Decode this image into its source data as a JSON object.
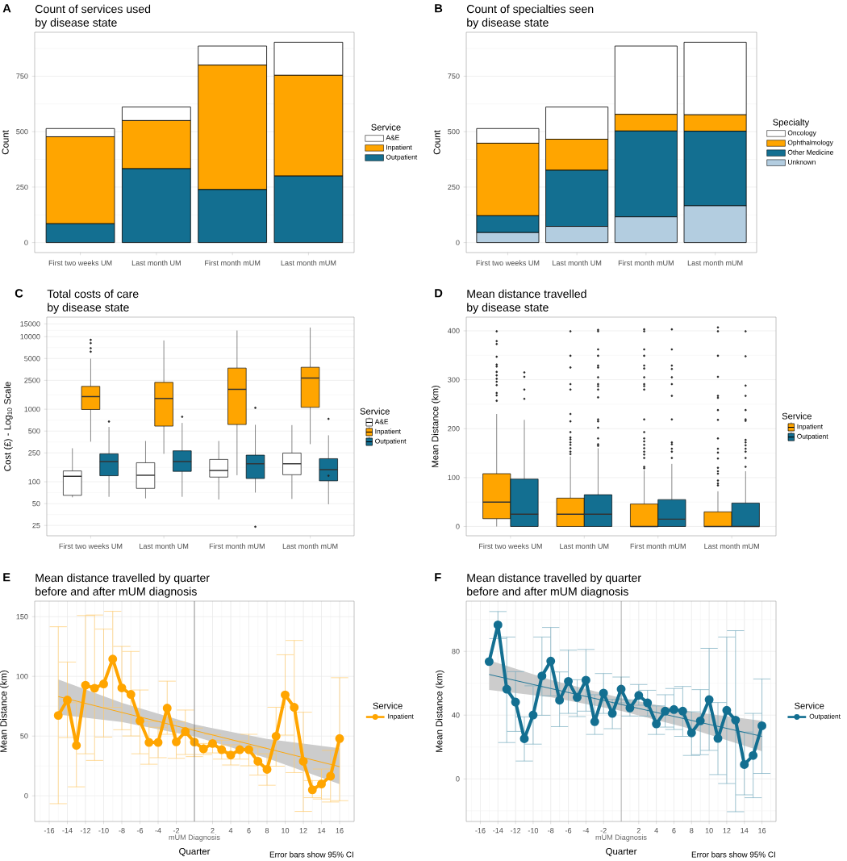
{
  "chart_data": [
    {
      "type": "bar",
      "stacked": true,
      "title": "Count of services used",
      "subtitle": "by disease state",
      "ylabel": "Count",
      "legend_title": "Service",
      "legend": "right",
      "grid": "y",
      "annotations": [
        "A"
      ],
      "categories": [
        "First two weeks UM",
        "Last month UM",
        "First month mUM",
        "Last month mUM"
      ],
      "ylim": [
        -45,
        948
      ],
      "yticks": [
        0,
        250,
        500,
        750
      ],
      "series": [
        {
          "name": "Outpatient",
          "color": "#136f91",
          "values": [
            85,
            333,
            239,
            300
          ]
        },
        {
          "name": "Inpatient",
          "color": "#ffa500",
          "values": [
            392,
            217,
            561,
            454
          ]
        },
        {
          "name": "A&E",
          "color": "#ffffff",
          "values": [
            37,
            61,
            86,
            149
          ]
        }
      ]
    },
    {
      "type": "bar",
      "stacked": true,
      "title": "Count of specialties seen",
      "subtitle": "by disease state",
      "ylabel": "Count",
      "legend_title": "Specialty",
      "legend": "right",
      "grid": "y",
      "annotations": [
        "B"
      ],
      "categories": [
        "First two weeks UM",
        "Last month UM",
        "First month mUM",
        "Last month mUM"
      ],
      "ylim": [
        -45,
        948
      ],
      "yticks": [
        0,
        250,
        500,
        750
      ],
      "series": [
        {
          "name": "Unknown",
          "color": "#b3cde0",
          "values": [
            45,
            73,
            116,
            166
          ]
        },
        {
          "name": "Other Medicine",
          "color": "#136f91",
          "values": [
            76,
            253,
            387,
            336
          ]
        },
        {
          "name": "Ophthalmology",
          "color": "#ffa500",
          "values": [
            327,
            140,
            75,
            74
          ]
        },
        {
          "name": "Oncology",
          "color": "#ffffff",
          "values": [
            66,
            145,
            308,
            327
          ]
        }
      ]
    },
    {
      "type": "box",
      "log": true,
      "title": "Total costs of care",
      "subtitle": "by disease state",
      "ylabel": "Cost (£) - Log$_{10}$ Scale",
      "legend_title": "Service",
      "legend": "right",
      "grid": "y",
      "annotations": [
        "C"
      ],
      "categories": [
        "First two weeks UM",
        "Last month UM",
        "First month mUM",
        "Last month mUM"
      ],
      "ylim": [
        18,
        18600
      ],
      "yticks": [
        25,
        50,
        100,
        250,
        500,
        1000,
        2500,
        5000,
        10000,
        15000
      ],
      "series": [
        {
          "name": "A&E",
          "color": "#ffffff",
          "boxes": [
            {
              "low": 61,
              "q1": 65,
              "median": 119,
              "q3": 141,
              "high": 290
            },
            {
              "low": 59,
              "q1": 81,
              "median": 123,
              "q3": 183,
              "high": 365
            },
            {
              "low": 57,
              "q1": 116,
              "median": 143,
              "q3": 203,
              "high": 365
            },
            {
              "low": 58,
              "q1": 125,
              "median": 177,
              "q3": 249,
              "high": 604
            }
          ]
        },
        {
          "name": "Inpatient",
          "color": "#ffa500",
          "boxes": [
            {
              "low": 357,
              "q1": 991,
              "median": 1493,
              "q3": 2065,
              "high": 4965,
              "outliers": [
                9040,
                8150,
                6930,
                6210
              ]
            },
            {
              "low": 243,
              "q1": 585,
              "median": 1406,
              "q3": 2345,
              "high": 8870
            },
            {
              "low": 123,
              "q1": 615,
              "median": 1880,
              "q3": 3690,
              "high": 12160
            },
            {
              "low": 330,
              "q1": 1062,
              "median": 2690,
              "q3": 3785,
              "high": 13370
            }
          ]
        },
        {
          "name": "Outpatient",
          "color": "#136f91",
          "boxes": [
            {
              "low": 62,
              "q1": 121,
              "median": 190,
              "q3": 243,
              "high": 570,
              "outliers": [
                676
              ]
            },
            {
              "low": 62,
              "q1": 139,
              "median": 190,
              "q3": 267,
              "high": 647,
              "outliers": [
                787
              ]
            },
            {
              "low": 71,
              "q1": 111,
              "median": 177,
              "q3": 233,
              "high": 610,
              "outliers": [
                1045,
                24
              ]
            },
            {
              "low": 49,
              "q1": 103,
              "median": 147,
              "q3": 208,
              "high": 437,
              "outliers": [
                736,
                121
              ]
            }
          ]
        }
      ]
    },
    {
      "type": "box",
      "title": "Mean distance travelled",
      "subtitle": "by disease state",
      "ylabel": "Mean Distance (km)",
      "legend_title": "Service",
      "legend": "right",
      "grid": "y",
      "annotations": [
        "D"
      ],
      "categories": [
        "First two weeks UM",
        "Last month UM",
        "First month mUM",
        "Last month mUM"
      ],
      "ylim": [
        -19,
        428
      ],
      "yticks": [
        0,
        100,
        200,
        300,
        400
      ],
      "series": [
        {
          "name": "Inpatient",
          "color": "#ffa500",
          "boxes": [
            {
              "low": 0,
              "q1": 16,
              "median": 50,
              "q3": 108,
              "high": 230,
              "outliers": [
                399,
                379,
                373,
                347,
                331,
                327,
                316,
                309,
                302,
                296,
                289,
                273,
                268,
                257
              ]
            },
            {
              "low": 0,
              "q1": 0,
              "median": 25,
              "q3": 58,
              "high": 143,
              "outliers": [
                399,
                349,
                325,
                291,
                280,
                230,
                215,
                193,
                182,
                178,
                172,
                167,
                160,
                153,
                148
              ]
            },
            {
              "low": 0,
              "q1": 0,
              "median": 0,
              "q3": 46,
              "high": 115,
              "outliers": [
                403,
                399,
                362,
                349,
                329,
                323,
                305,
                291,
                287,
                280,
                219,
                193,
                180,
                174,
                167,
                160,
                153,
                147,
                140,
                122,
                119
              ]
            },
            {
              "low": 0,
              "q1": 0,
              "median": 0,
              "q3": 30,
              "high": 72,
              "outliers": [
                407,
                399,
                349,
                306,
                267,
                263,
                238,
                218,
                180,
                159,
                151,
                139,
                120,
                113,
                108,
                94,
                88,
                84
              ]
            }
          ]
        },
        {
          "name": "Outpatient",
          "color": "#136f91",
          "boxes": [
            {
              "low": 0,
              "q1": 0,
              "median": 25,
              "q3": 97,
              "high": 218,
              "outliers": [
                315,
                306,
                280,
                261
              ]
            },
            {
              "low": 0,
              "q1": 0,
              "median": 25,
              "q3": 65,
              "high": 160,
              "outliers": [
                402,
                399,
                362,
                349,
                329,
                325,
                305,
                291,
                287,
                280,
                264,
                219,
                215,
                202,
                180,
                168,
                165
              ]
            },
            {
              "low": 0,
              "q1": 0,
              "median": 15,
              "q3": 55,
              "high": 128,
              "outliers": [
                403,
                362,
                329,
                322,
                305,
                291,
                267,
                219,
                172,
                168,
                159,
                153,
                140
              ]
            },
            {
              "low": 0,
              "q1": 0,
              "median": 0,
              "q3": 48,
              "high": 113,
              "outliers": [
                399,
                348,
                288,
                267,
                238,
                219,
                216,
                177,
                172,
                166,
                159,
                153,
                140,
                122
              ]
            }
          ]
        }
      ]
    },
    {
      "type": "line",
      "title": "Mean distance travelled by quarter",
      "subtitle": "before and after mUM diagnosis",
      "xlabel": "Quarter",
      "ylabel": "Mean Distance (km)",
      "legend_title": "Service",
      "legend": "right",
      "grid": true,
      "marker": "circle",
      "annotations": [
        "E",
        "Error bars show 95% CI"
      ],
      "xlim": [
        -17.6,
        17.6
      ],
      "xticks": [
        -16,
        -14,
        -12,
        -10,
        -8,
        -6,
        -4,
        -2,
        2,
        4,
        6,
        8,
        10,
        12,
        14,
        16
      ],
      "ylim": [
        -21.5,
        163
      ],
      "yticks": [
        0,
        50,
        100,
        150
      ],
      "ref_lines": [
        {
          "axis": "x",
          "value": 0,
          "label": "mUM Diagnosis"
        }
      ],
      "x": [
        -15,
        -14,
        -13,
        -12,
        -11,
        -10,
        -9,
        -8,
        -7,
        -6,
        -5,
        -4,
        -3,
        -2,
        -1,
        0,
        1,
        2,
        3,
        4,
        5,
        6,
        7,
        8,
        9,
        10,
        11,
        12,
        13,
        14,
        15,
        16
      ],
      "series": [
        {
          "name": "Inpatient",
          "color": "#ffa500",
          "values": [
            67.3,
            80.2,
            42.2,
            92.6,
            90.1,
            93.7,
            114.5,
            90.4,
            84.9,
            62.8,
            44.7,
            44.7,
            73.4,
            45.2,
            53.8,
            45,
            39.3,
            43.8,
            38.6,
            34.1,
            38.6,
            38.6,
            28.9,
            22.1,
            49.9,
            84.5,
            74.1,
            28.9,
            5,
            9.9,
            16.5,
            47.9
          ],
          "errors": [
            [
              -6.6,
              141.6
            ],
            [
              48.8,
              112
            ],
            [
              7.5,
              77.9
            ],
            [
              35.2,
              151
            ],
            [
              29.6,
              151.4
            ],
            [
              49.2,
              139.6
            ],
            [
              74.1,
              154.5
            ],
            [
              55.3,
              125.1
            ],
            [
              50.1,
              120.9
            ],
            [
              35.2,
              88.6
            ],
            [
              26.4,
              62.1
            ],
            [
              31.9,
              57.4
            ],
            [
              51.5,
              96
            ],
            [
              31.4,
              61.9
            ],
            [
              34.6,
              71.8
            ],
            [
              32.8,
              56.7
            ],
            [
              34.6,
              43.8
            ],
            [
              35.9,
              51.3
            ],
            [
              30.7,
              46.5
            ],
            [
              25.8,
              42.7
            ],
            [
              30.7,
              46.1
            ],
            [
              25.1,
              51.5
            ],
            [
              17.4,
              40.2
            ],
            [
              8.8,
              35.2
            ],
            [
              24.8,
              74.1
            ],
            [
              50.8,
              118.1
            ],
            [
              19.4,
              130.1
            ],
            [
              -13.1,
              70
            ],
            [
              -1.6,
              12.7
            ],
            [
              -2.7,
              22.4
            ],
            [
              -5.2,
              38
            ],
            [
              -4.1,
              98.9
            ]
          ]
        },
        {
          "type": "line",
          "marker": "none",
          "color": "#ffa500",
          "x": [
            -15,
            -8,
            0,
            8,
            16
          ],
          "values": [
            83.1,
            69.8,
            54.7,
            39.6,
            24.4
          ],
          "lower": [
            68,
            61.8,
            49.7,
            31.6,
            9.7
          ],
          "upper": [
            97.4,
            77.8,
            59.7,
            47.6,
            39.8
          ]
        }
      ]
    },
    {
      "type": "line",
      "title": "Mean distance travelled by quarter",
      "subtitle": "before and after mUM diagnosis",
      "xlabel": "Quarter",
      "ylabel": "Mean Distance (km)",
      "legend_title": "Service",
      "legend": "right",
      "grid": true,
      "marker": "circle",
      "annotations": [
        "F",
        "Error bars show 95% CI"
      ],
      "xlim": [
        -17.6,
        17.6
      ],
      "xticks": [
        -16,
        -14,
        -12,
        -10,
        -8,
        -6,
        -4,
        -2,
        2,
        4,
        6,
        8,
        10,
        12,
        14,
        16
      ],
      "ylim": [
        -26.7,
        111.5
      ],
      "yticks": [
        0,
        40,
        80
      ],
      "ref_lines": [
        {
          "axis": "x",
          "value": 0,
          "label": "mUM Diagnosis"
        }
      ],
      "x": [
        -15,
        -14,
        -13,
        -12,
        -11,
        -10,
        -9,
        -8,
        -7,
        -6,
        -5,
        -4,
        -3,
        -2,
        -1,
        0,
        1,
        2,
        3,
        4,
        5,
        6,
        7,
        8,
        9,
        10,
        11,
        12,
        13,
        14,
        15,
        16
      ],
      "series": [
        {
          "name": "Outpatient",
          "color": "#136f91",
          "values": [
            73.6,
            96.6,
            56.3,
            48.2,
            25.2,
            40.1,
            64.6,
            73.9,
            49.4,
            61.2,
            51.1,
            61.9,
            35.9,
            53.8,
            41.1,
            56.3,
            44.5,
            52.4,
            47.7,
            34.5,
            42.5,
            43.5,
            42.5,
            28.9,
            36.4,
            49.7,
            25.4,
            43,
            36.9,
            9,
            14.7,
            33.3
          ],
          "errors": [
            null,
            [
              88,
              105
            ],
            [
              22.8,
              89
            ],
            [
              29.8,
              67.3
            ],
            [
              11.2,
              38.9
            ],
            [
              21.8,
              58.4
            ],
            [
              39.9,
              89
            ],
            [
              52.1,
              95
            ],
            [
              32.8,
              67.1
            ],
            [
              41.1,
              80.8
            ],
            [
              39.1,
              62.2
            ],
            [
              42.5,
              81.2
            ],
            [
              27.9,
              52.8
            ],
            [
              41.1,
              66.1
            ],
            [
              31.5,
              49.9
            ],
            [
              47.7,
              63.9
            ],
            [
              39.4,
              49.6
            ],
            [
              46.2,
              59.2
            ],
            [
              39.4,
              55.6
            ],
            [
              27.9,
              45.8
            ],
            [
              32.5,
              52.8
            ],
            [
              31,
              56.7
            ],
            [
              26.7,
              58
            ],
            [
              14.7,
              42.1
            ],
            [
              15.2,
              56
            ],
            [
              17.9,
              81.9
            ],
            [
              2.7,
              47.9
            ],
            [
              -2.9,
              89
            ],
            [
              -20.6,
              93
            ],
            [
              -10,
              29.4
            ],
            [
              -11.8,
              41.1
            ],
            [
              3.4,
              62.7
            ]
          ]
        },
        {
          "type": "line",
          "marker": "none",
          "color": "#136f91",
          "x": [
            -15,
            -8,
            0,
            8,
            16
          ],
          "values": [
            65.5,
            56.7,
            46.7,
            36.7,
            26.7
          ],
          "lower": [
            55.8,
            51.2,
            42.7,
            31.2,
            17.4
          ],
          "upper": [
            74.4,
            62.2,
            50.7,
            42.2,
            36.4
          ]
        }
      ]
    }
  ]
}
